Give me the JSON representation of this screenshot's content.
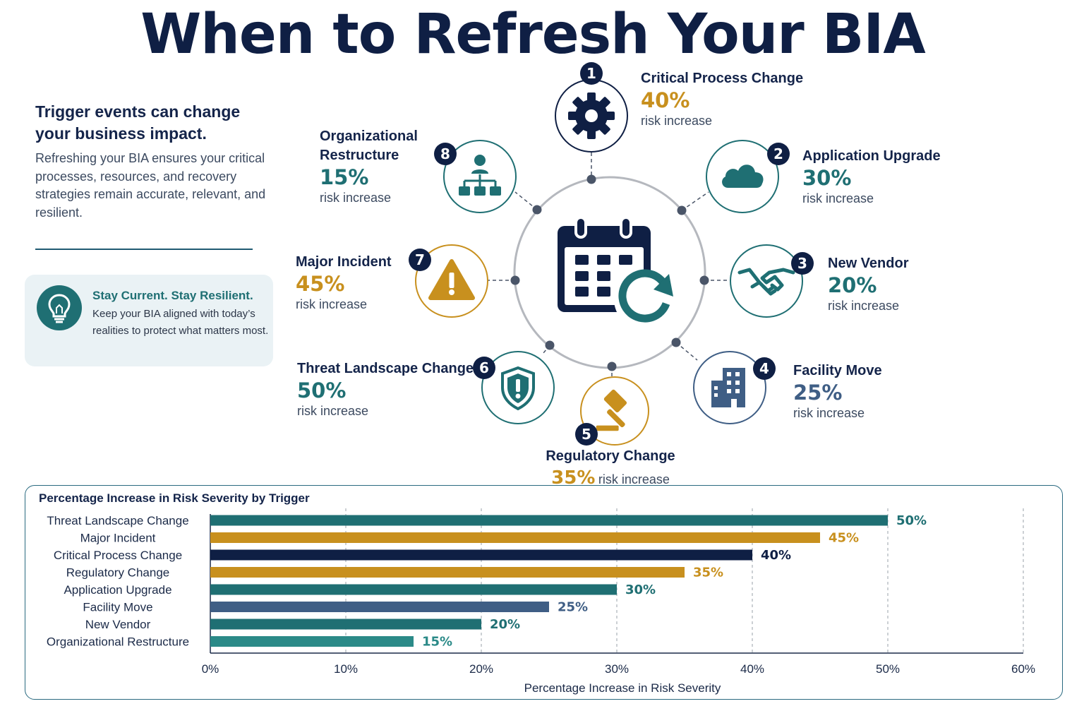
{
  "title": "When to Refresh Your BIA",
  "intro": {
    "heading": "Trigger events can change your business impact.",
    "body": "Refreshing your BIA ensures your critical processes, resources, and recovery strategies remain accurate, relevant, and resilient."
  },
  "tip": {
    "icon": "lightbulb-icon",
    "heading": "Stay Current. Stay Resilient.",
    "body": "Keep your BIA aligned with today’s realities to protect what matters most."
  },
  "center_icon": "calendar-refresh-icon",
  "colors": {
    "navy": "#0f1f44",
    "teal": "#1f6f73",
    "gold": "#c8901e",
    "slate": "#3f5e85",
    "teal_light": "#2b8a88"
  },
  "triggers": [
    {
      "number": "1",
      "name": "Critical Process Change",
      "pct": "40%",
      "sub": "risk increase",
      "icon": "gear-icon",
      "color": "#0f1f44",
      "pct_color": "#c8901e"
    },
    {
      "number": "2",
      "name": "Application Upgrade",
      "pct": "30%",
      "sub": "risk increase",
      "icon": "cloud-icon",
      "color": "#1f6f73",
      "pct_color": "#1f6f73"
    },
    {
      "number": "3",
      "name": "New Vendor",
      "pct": "20%",
      "sub": "risk increase",
      "icon": "handshake-icon",
      "color": "#1f6f73",
      "pct_color": "#1f6f73"
    },
    {
      "number": "4",
      "name": "Facility Move",
      "pct": "25%",
      "sub": "risk increase",
      "icon": "building-icon",
      "color": "#3f5e85",
      "pct_color": "#3f5e85"
    },
    {
      "number": "5",
      "name": "Regulatory Change",
      "pct": "35%",
      "sub": "risk increase",
      "icon": "gavel-icon",
      "color": "#c8901e",
      "pct_color": "#c8901e"
    },
    {
      "number": "6",
      "name": "Threat Landscape Change",
      "pct": "50%",
      "sub": "risk increase",
      "icon": "shield-alert-icon",
      "color": "#1f6f73",
      "pct_color": "#1f6f73"
    },
    {
      "number": "7",
      "name": "Major Incident",
      "pct": "45%",
      "sub": "risk increase",
      "icon": "warning-icon",
      "color": "#c8901e",
      "pct_color": "#c8901e"
    },
    {
      "number": "8",
      "name": "Organizational Restructure",
      "pct": "15%",
      "sub": "risk increase",
      "icon": "org-chart-icon",
      "color": "#1f6f73",
      "pct_color": "#1f6f73"
    }
  ],
  "chart_data": {
    "type": "bar",
    "orientation": "horizontal",
    "title": "Percentage Increase in Risk Severity by Trigger",
    "xlabel": "Percentage Increase in Risk Severity",
    "ylabel": "",
    "categories": [
      "Threat Landscape Change",
      "Major Incident",
      "Critical Process Change",
      "Regulatory Change",
      "Application Upgrade",
      "Facility Move",
      "New Vendor",
      "Organizational Restructure"
    ],
    "values": [
      50,
      45,
      40,
      35,
      30,
      25,
      20,
      15
    ],
    "value_labels": [
      "50%",
      "45%",
      "40%",
      "35%",
      "30%",
      "25%",
      "20%",
      "15%"
    ],
    "colors": [
      "#1f6f73",
      "#c8901e",
      "#0f1f44",
      "#c8901e",
      "#1f6f73",
      "#3f5e85",
      "#1f6f73",
      "#2b8a88"
    ],
    "xlim": [
      0,
      60
    ],
    "ticks": [
      0,
      10,
      20,
      30,
      40,
      50,
      60
    ],
    "tick_labels": [
      "0%",
      "10%",
      "20%",
      "30%",
      "40%",
      "50%",
      "60%"
    ],
    "grid": "vertical dashed"
  }
}
